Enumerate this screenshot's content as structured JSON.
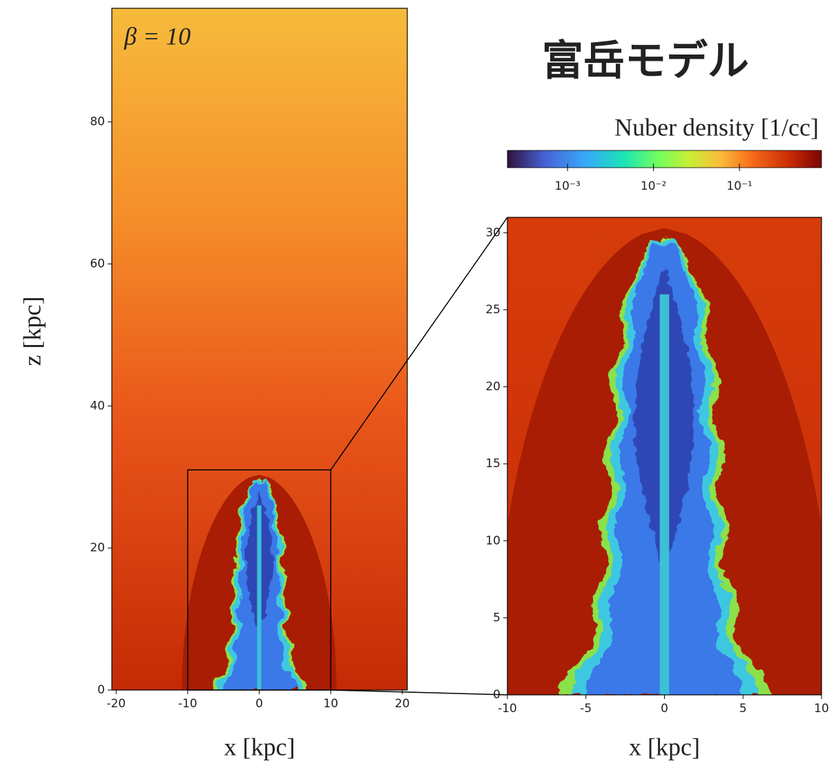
{
  "title": "富岳モデル",
  "chart_data": [
    {
      "type": "heatmap",
      "annotation": "β = 10",
      "xlabel": "x [kpc]",
      "ylabel": "z [kpc]",
      "xlim": [
        -20.6,
        20.7
      ],
      "ylim": [
        0,
        96
      ],
      "xticks": [
        -20,
        -10,
        0,
        10,
        20
      ],
      "yticks": [
        0,
        20,
        40,
        60,
        80
      ]
    },
    {
      "type": "heatmap",
      "xlabel": "x [kpc]",
      "xlim": [
        -10,
        10
      ],
      "ylim": [
        0,
        31
      ],
      "xticks": [
        -10,
        -5,
        0,
        5,
        10
      ],
      "yticks": [
        0,
        5,
        10,
        15,
        20,
        25,
        30
      ]
    },
    {
      "type": "colorbar",
      "label": "Nuber density [1/cc]",
      "log": true,
      "clim": [
        0.0002,
        0.9
      ],
      "ticks": [
        {
          "value": 0.001,
          "label": "10⁻³"
        },
        {
          "value": 0.01,
          "label": "10⁻²"
        },
        {
          "value": 0.1,
          "label": "10⁻¹"
        }
      ]
    }
  ]
}
